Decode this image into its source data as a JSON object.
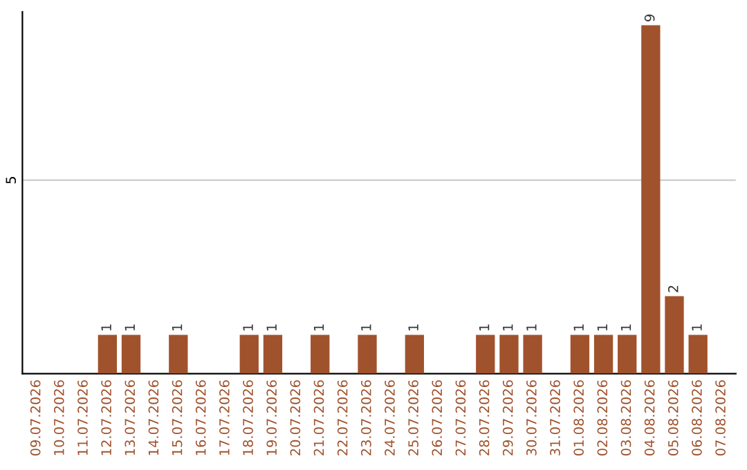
{
  "chart_data": {
    "type": "bar",
    "categories": [
      "09.07.2026",
      "10.07.2026",
      "11.07.2026",
      "12.07.2026",
      "13.07.2026",
      "14.07.2026",
      "15.07.2026",
      "16.07.2026",
      "17.07.2026",
      "18.07.2026",
      "19.07.2026",
      "20.07.2026",
      "21.07.2026",
      "22.07.2026",
      "23.07.2026",
      "24.07.2026",
      "25.07.2026",
      "26.07.2026",
      "27.07.2026",
      "28.07.2026",
      "29.07.2026",
      "30.07.2026",
      "31.07.2026",
      "01.08.2026",
      "02.08.2026",
      "03.08.2026",
      "04.08.2026",
      "05.08.2026",
      "06.08.2026",
      "07.08.2026"
    ],
    "values": [
      0,
      0,
      0,
      1,
      1,
      0,
      1,
      0,
      0,
      1,
      1,
      0,
      1,
      0,
      1,
      0,
      1,
      0,
      0,
      1,
      1,
      1,
      0,
      1,
      1,
      1,
      9,
      2,
      1,
      0
    ],
    "value_labels": [
      null,
      null,
      null,
      "1",
      "1",
      null,
      "1",
      null,
      null,
      "1",
      "1",
      null,
      "1",
      null,
      "1",
      null,
      "1",
      null,
      null,
      "1",
      "1",
      "1",
      null,
      "1",
      "1",
      "1",
      "9",
      "2",
      "1",
      null
    ],
    "color": "#a0522d",
    "ylim": [
      0,
      9.35
    ],
    "yticks": [
      5
    ],
    "grid": "y"
  }
}
